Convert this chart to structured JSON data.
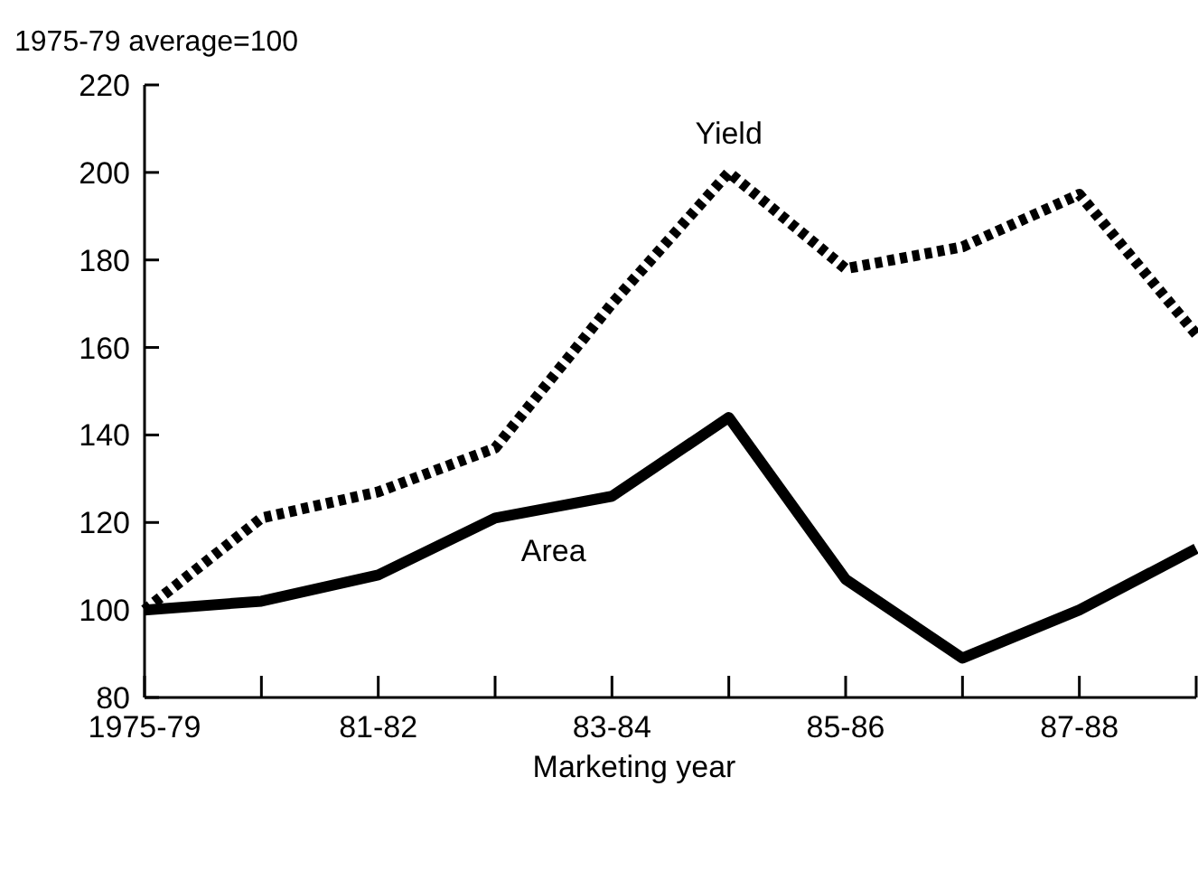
{
  "chart_data": {
    "type": "line",
    "ylabel": "1975-79 average=100",
    "xlabel": "Marketing year",
    "categories": [
      "1975-79",
      null,
      "81-82",
      null,
      "83-84",
      null,
      "85-86",
      null,
      "87-88",
      null
    ],
    "ylim": [
      80,
      220
    ],
    "yticks": [
      80,
      100,
      120,
      140,
      160,
      180,
      200,
      220
    ],
    "grid": false,
    "marker": "none",
    "series": [
      {
        "name": "Yield",
        "color": "#000000",
        "line_style": "dotted",
        "values": [
          100,
          121,
          127,
          137,
          170,
          200,
          178,
          183,
          195,
          163
        ]
      },
      {
        "name": "Area",
        "color": "#000000",
        "line_style": "solid",
        "values": [
          100,
          102,
          108,
          121,
          126,
          144,
          107,
          89,
          100,
          114
        ]
      }
    ]
  }
}
